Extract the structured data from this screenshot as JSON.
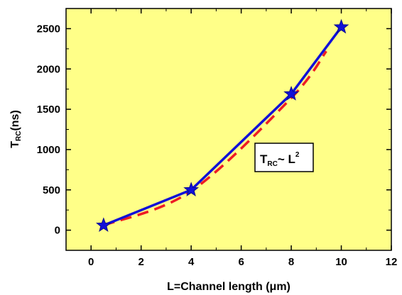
{
  "chart_data": {
    "type": "line",
    "xlabel": "L=Channel length (μm)",
    "ylabel": {
      "main": "T",
      "sub": "RC",
      "rest": "(ns)"
    },
    "xlim": [
      -1,
      12
    ],
    "ylim": [
      -250,
      2750
    ],
    "xticks": [
      0,
      2,
      4,
      6,
      8,
      10,
      12
    ],
    "yticks": [
      0,
      500,
      1000,
      1500,
      2000,
      2500
    ],
    "grid": false,
    "background_color": "#ffff88",
    "series": [
      {
        "style": "solid-line-star-markers",
        "color": "#1010d8",
        "x": [
          0.5,
          4,
          8,
          10
        ],
        "y": [
          60,
          500,
          1690,
          2520
        ]
      },
      {
        "style": "dashed-fit",
        "color": "#ee1c24",
        "x": [
          0.5,
          4,
          8,
          9.4
        ],
        "y": [
          60,
          485,
          1640,
          2220
        ],
        "curve": "quadratic"
      }
    ],
    "annotation": {
      "main": "T",
      "sub": "RC",
      "rest": "~ L",
      "sup": "2"
    }
  }
}
